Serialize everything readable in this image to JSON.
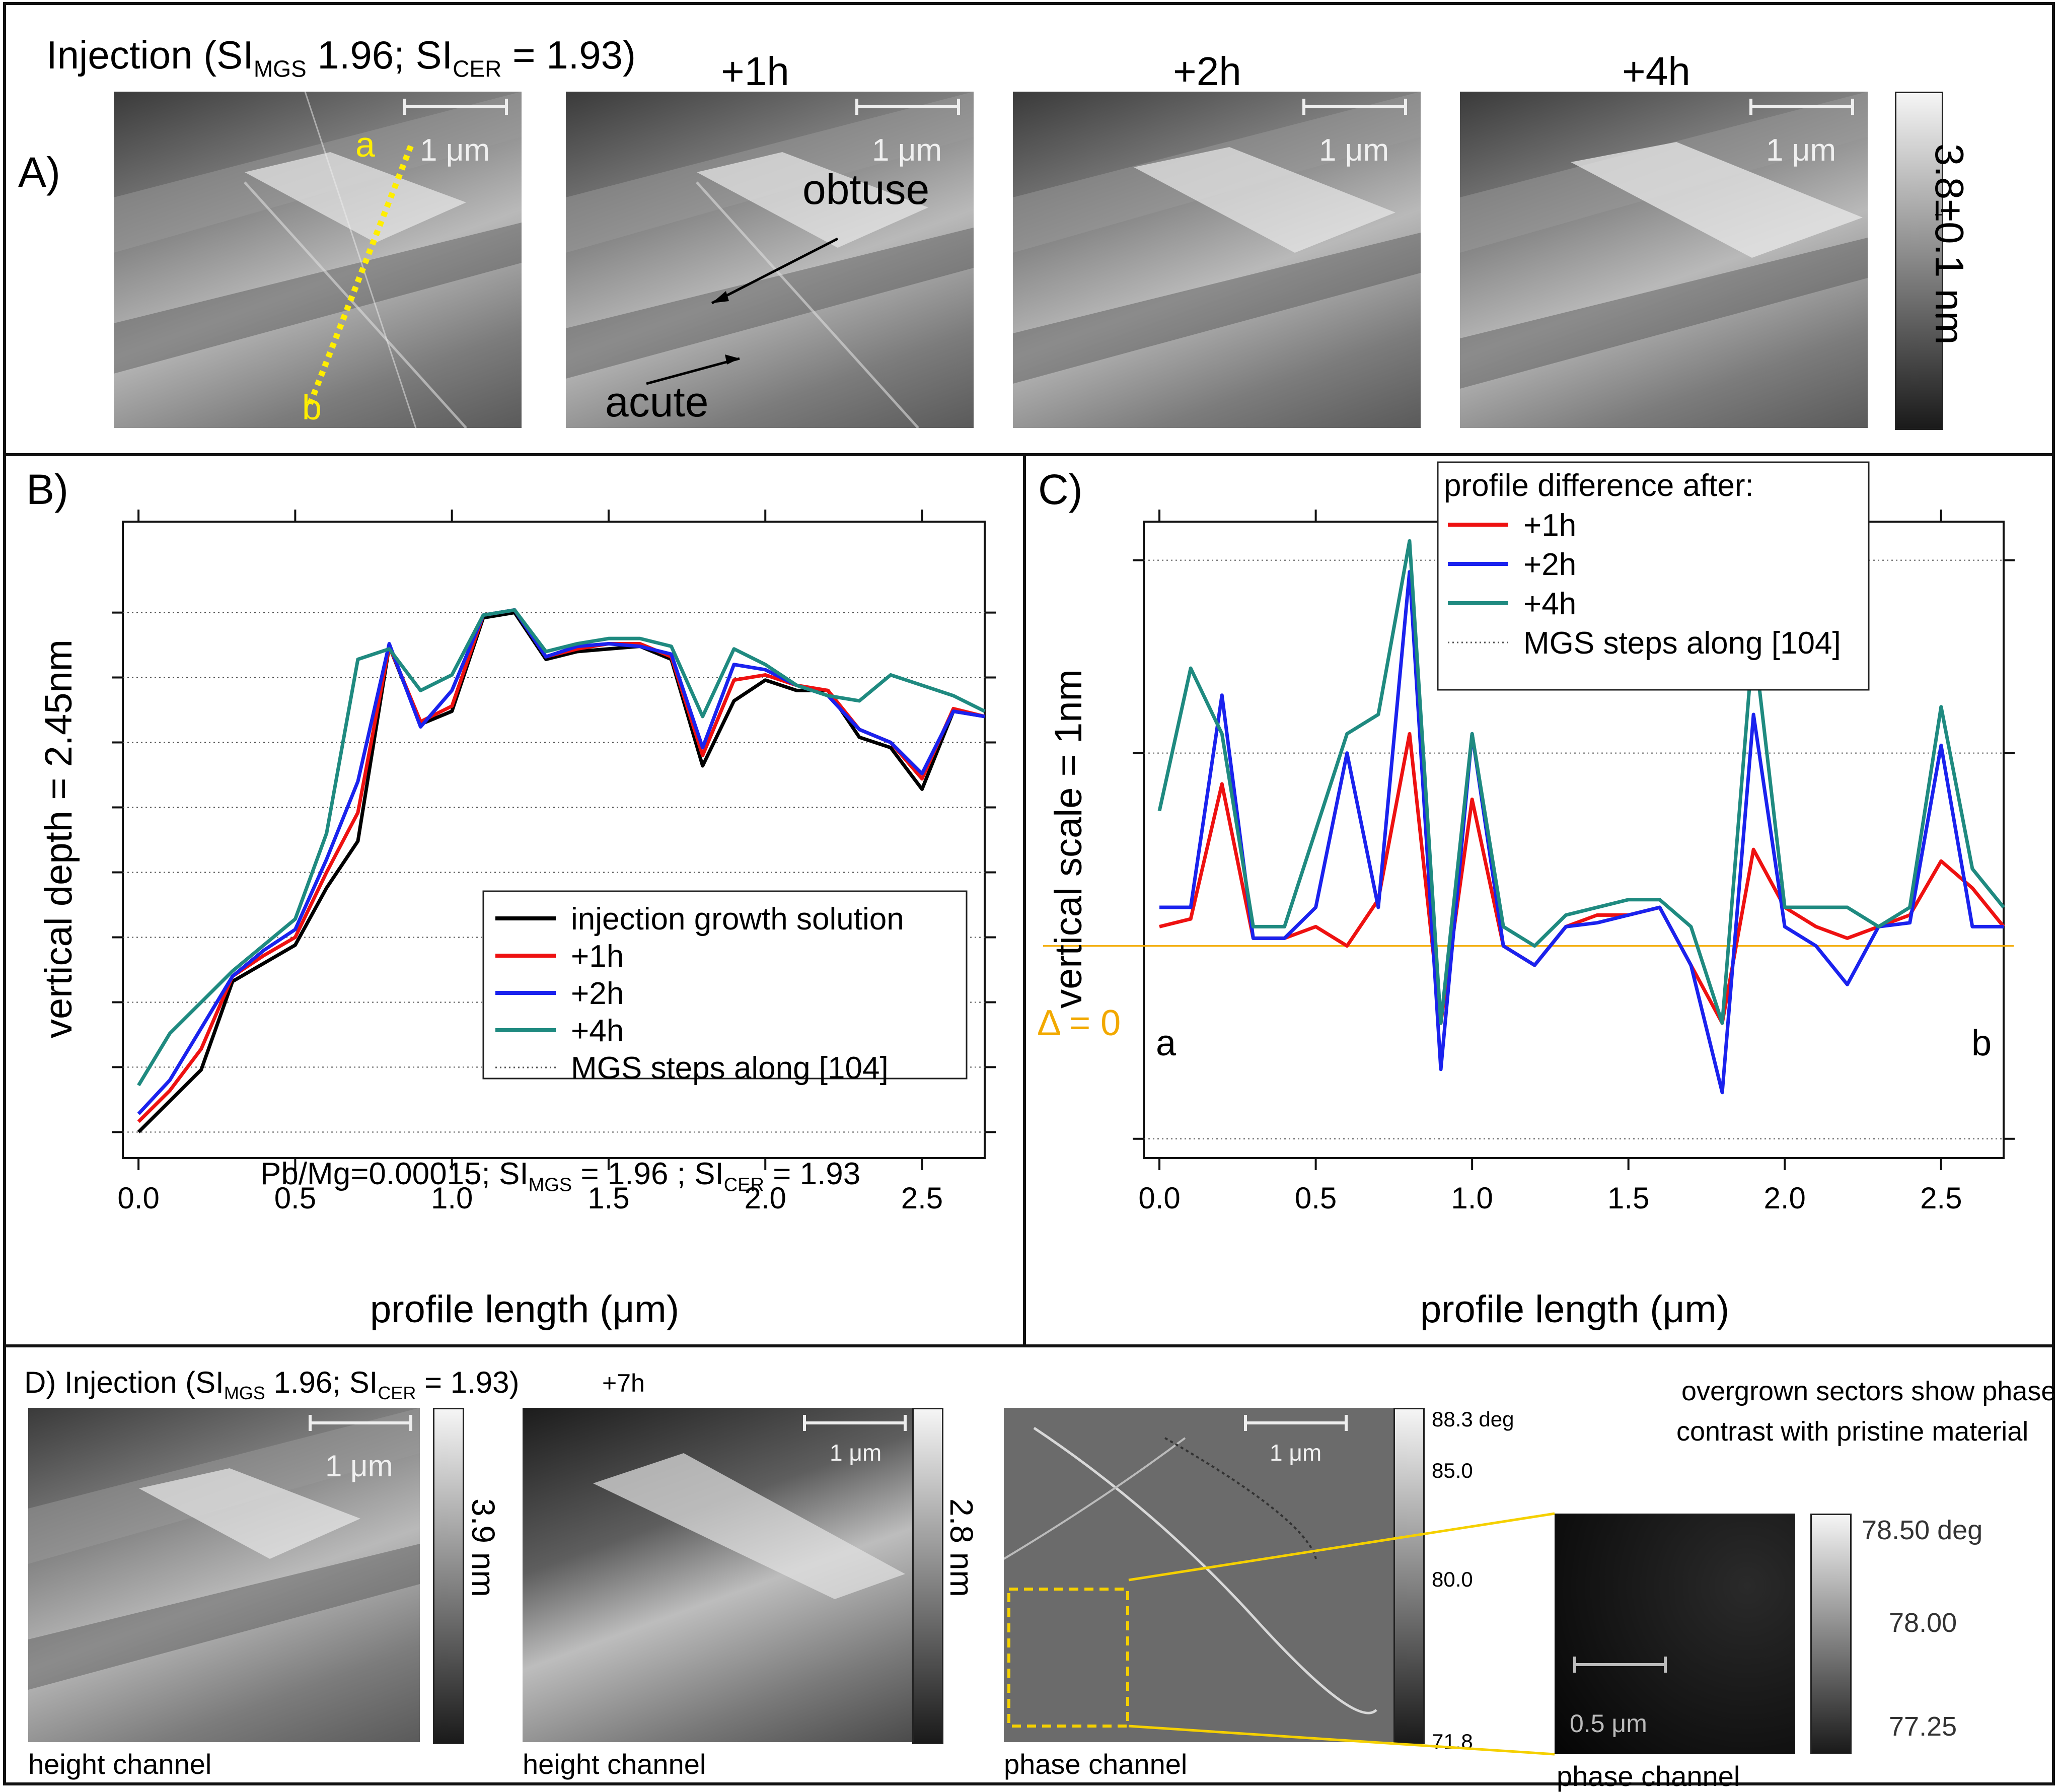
{
  "panelA": {
    "label": "A)",
    "title_prefix": "Injection (SI",
    "title_sub1": "MGS",
    "title_mid": " 1.96; SI",
    "title_sub2": "CER",
    "title_suffix": " = 1.93)",
    "times": [
      "+1h",
      "+2h",
      "+4h"
    ],
    "scale": "1 μm",
    "point_a": "a",
    "point_b": "b",
    "obtuse": "obtuse",
    "acute": "acute",
    "colorbar_label": "3.8±0.1 nm"
  },
  "panelB": {
    "label": "B)",
    "annotation_prefix": "Pb/Mg=0.00015; SI",
    "annotation_sub1": "MGS",
    "annotation_mid": " = 1.96 ; SI",
    "annotation_sub2": "CER",
    "annotation_suffix": " = 1.93"
  },
  "panelC": {
    "label": "C)",
    "delta": "Δ = 0",
    "point_a": "a",
    "point_b": "b",
    "legend_title": "profile difference after:"
  },
  "panelD": {
    "label": "D)",
    "title_prefix": "Injection (SI",
    "title_sub1": "MGS",
    "title_mid": " 1.96; SI",
    "title_sub2": "CER",
    "title_suffix": " = 1.93)",
    "time": "+7h",
    "scale": "1 μm",
    "scale_small": "0.5 μm",
    "cbar1": "3.9 nm",
    "cbar2": "2.8 nm",
    "phase_ticks": [
      "88.3 deg",
      "85.0",
      "80.0",
      "71.8"
    ],
    "zoom_ticks": [
      "78.50 deg",
      "78.00",
      "77.25"
    ],
    "caption_height": "height channel",
    "caption_phase": "phase channel",
    "note_line1": "overgrown sectors show phase",
    "note_line2": "contrast with pristine material"
  },
  "chart_data": [
    {
      "type": "line",
      "title": "",
      "xlabel": "profile length (μm)",
      "ylabel": "vertical depth = 2.45nm",
      "xlim": [
        -0.05,
        2.7
      ],
      "x_ticks": [
        "0.0",
        "0.5",
        "1.0",
        "1.5",
        "2.0",
        "2.5"
      ],
      "y_units": "nm",
      "ylim": [
        0,
        2.45
      ],
      "legend_position": "center-right",
      "x": [
        0.0,
        0.1,
        0.2,
        0.3,
        0.4,
        0.5,
        0.6,
        0.7,
        0.8,
        0.9,
        1.0,
        1.1,
        1.2,
        1.3,
        1.4,
        1.5,
        1.6,
        1.7,
        1.8,
        1.9,
        2.0,
        2.1,
        2.2,
        2.3,
        2.4,
        2.5,
        2.6,
        2.7
      ],
      "series": [
        {
          "name": "injection growth solution",
          "color": "#000000",
          "values": [
            0.1,
            0.22,
            0.34,
            0.68,
            0.75,
            0.82,
            1.04,
            1.22,
            1.97,
            1.67,
            1.72,
            2.08,
            2.1,
            1.92,
            1.95,
            1.96,
            1.97,
            1.92,
            1.51,
            1.76,
            1.84,
            1.8,
            1.8,
            1.62,
            1.58,
            1.42,
            1.72,
            1.7
          ]
        },
        {
          "name": "+1h",
          "color": "#ee1111",
          "values": [
            0.14,
            0.26,
            0.42,
            0.7,
            0.78,
            0.85,
            1.1,
            1.33,
            1.97,
            1.68,
            1.74,
            2.09,
            2.11,
            1.93,
            1.96,
            1.98,
            1.98,
            1.93,
            1.55,
            1.84,
            1.86,
            1.82,
            1.8,
            1.65,
            1.6,
            1.46,
            1.73,
            1.7
          ]
        },
        {
          "name": "+2h",
          "color": "#1a22ee",
          "values": [
            0.17,
            0.3,
            0.5,
            0.7,
            0.8,
            0.88,
            1.15,
            1.45,
            1.98,
            1.66,
            1.8,
            2.09,
            2.11,
            1.93,
            1.97,
            1.98,
            1.97,
            1.94,
            1.58,
            1.9,
            1.88,
            1.82,
            1.78,
            1.65,
            1.6,
            1.48,
            1.72,
            1.7
          ]
        },
        {
          "name": "+4h",
          "color": "#1f8a80",
          "values": [
            0.28,
            0.48,
            0.6,
            0.72,
            0.82,
            0.92,
            1.25,
            1.92,
            1.96,
            1.8,
            1.86,
            2.09,
            2.11,
            1.95,
            1.98,
            2.0,
            2.0,
            1.97,
            1.7,
            1.96,
            1.9,
            1.82,
            1.78,
            1.76,
            1.86,
            1.82,
            1.78,
            1.72
          ]
        }
      ],
      "reference": {
        "name": "MGS steps along [104]",
        "style": "dotted"
      }
    },
    {
      "type": "line",
      "title": "",
      "xlabel": "profile length (μm)",
      "ylabel": "vertical scale = 1nm",
      "xlim": [
        -0.05,
        2.7
      ],
      "x_ticks": [
        "0.0",
        "0.5",
        "1.0",
        "1.5",
        "2.0",
        "2.5"
      ],
      "y_units": "nm",
      "ylim": [
        -0.55,
        1.1
      ],
      "legend_position": "top-center",
      "x": [
        0.0,
        0.1,
        0.2,
        0.3,
        0.4,
        0.5,
        0.6,
        0.7,
        0.8,
        0.9,
        1.0,
        1.1,
        1.2,
        1.3,
        1.4,
        1.5,
        1.6,
        1.7,
        1.8,
        1.9,
        2.0,
        2.1,
        2.2,
        2.3,
        2.4,
        2.5,
        2.6,
        2.7
      ],
      "series": [
        {
          "name": "+1h",
          "color": "#ee1111",
          "values": [
            0.05,
            0.07,
            0.42,
            0.02,
            0.02,
            0.05,
            0.0,
            0.12,
            0.55,
            -0.2,
            0.38,
            0.0,
            -0.05,
            0.05,
            0.08,
            0.08,
            0.1,
            -0.05,
            -0.2,
            0.25,
            0.1,
            0.05,
            0.02,
            0.05,
            0.08,
            0.22,
            0.15,
            0.05
          ]
        },
        {
          "name": "+2h",
          "color": "#1a22ee",
          "values": [
            0.1,
            0.1,
            0.65,
            0.02,
            0.02,
            0.1,
            0.5,
            0.1,
            0.97,
            -0.32,
            0.55,
            0.0,
            -0.05,
            0.05,
            0.06,
            0.08,
            0.1,
            -0.05,
            -0.38,
            0.6,
            0.05,
            0.0,
            -0.1,
            0.05,
            0.06,
            0.52,
            0.05,
            0.05
          ]
        },
        {
          "name": "+4h",
          "color": "#1f8a80",
          "values": [
            0.35,
            0.72,
            0.55,
            0.05,
            0.05,
            0.3,
            0.55,
            0.6,
            1.05,
            -0.2,
            0.55,
            0.05,
            0.0,
            0.08,
            0.1,
            0.12,
            0.12,
            0.05,
            -0.2,
            0.8,
            0.1,
            0.1,
            0.1,
            0.05,
            0.1,
            0.62,
            0.2,
            0.1
          ]
        }
      ],
      "reference": {
        "name": "MGS steps along [104]",
        "style": "dotted"
      },
      "zero_line": {
        "label": "Δ = 0",
        "color": "#f2a900"
      }
    }
  ]
}
